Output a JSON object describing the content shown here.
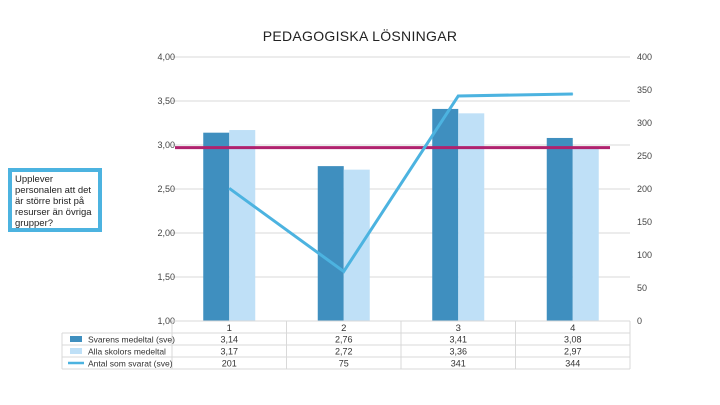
{
  "chart_data": {
    "type": "bar",
    "title": "PEDAGOGISKA LÖSNINGAR",
    "categories": [
      "1",
      "2",
      "3",
      "4"
    ],
    "ylim": [
      1.0,
      4.0
    ],
    "yticks": [
      "4,00",
      "3,50",
      "3,00",
      "2,50",
      "2,00",
      "1,50",
      "1,00"
    ],
    "ytick_values": [
      4.0,
      3.5,
      3.0,
      2.5,
      2.0,
      1.5,
      1.0
    ],
    "y2lim": [
      0,
      400
    ],
    "y2ticks": [
      "400",
      "350",
      "300",
      "250",
      "200",
      "150",
      "100",
      "50",
      "0"
    ],
    "y2tick_values": [
      400,
      350,
      300,
      250,
      200,
      150,
      100,
      50,
      0
    ],
    "reference_line": 2.97,
    "series": [
      {
        "name": "Svarens medeltal (sve)",
        "kind": "bar",
        "axis": "left",
        "color": "#3f8fbf",
        "values": [
          3.14,
          2.76,
          3.41,
          3.08
        ],
        "labels": [
          "3,14",
          "2,76",
          "3,41",
          "3,08"
        ]
      },
      {
        "name": "Alla skolors medeltal",
        "kind": "bar",
        "axis": "left",
        "color": "#bfe0f7",
        "values": [
          3.17,
          2.72,
          3.36,
          2.97
        ],
        "labels": [
          "3,17",
          "2,72",
          "3,36",
          "2,97"
        ]
      },
      {
        "name": "Antal som svarat (sve)",
        "kind": "line",
        "axis": "right",
        "color": "#4cb3e0",
        "values": [
          201,
          75,
          341,
          344
        ],
        "labels": [
          "201",
          "75",
          "341",
          "344"
        ]
      }
    ],
    "annotation": "Upplever personalen att det är större brist på resurser än övriga grupper?",
    "colors": {
      "reference_line": "#b0226e",
      "callout_border": "#4cb3e0",
      "grid": "#d9d9d9"
    }
  }
}
